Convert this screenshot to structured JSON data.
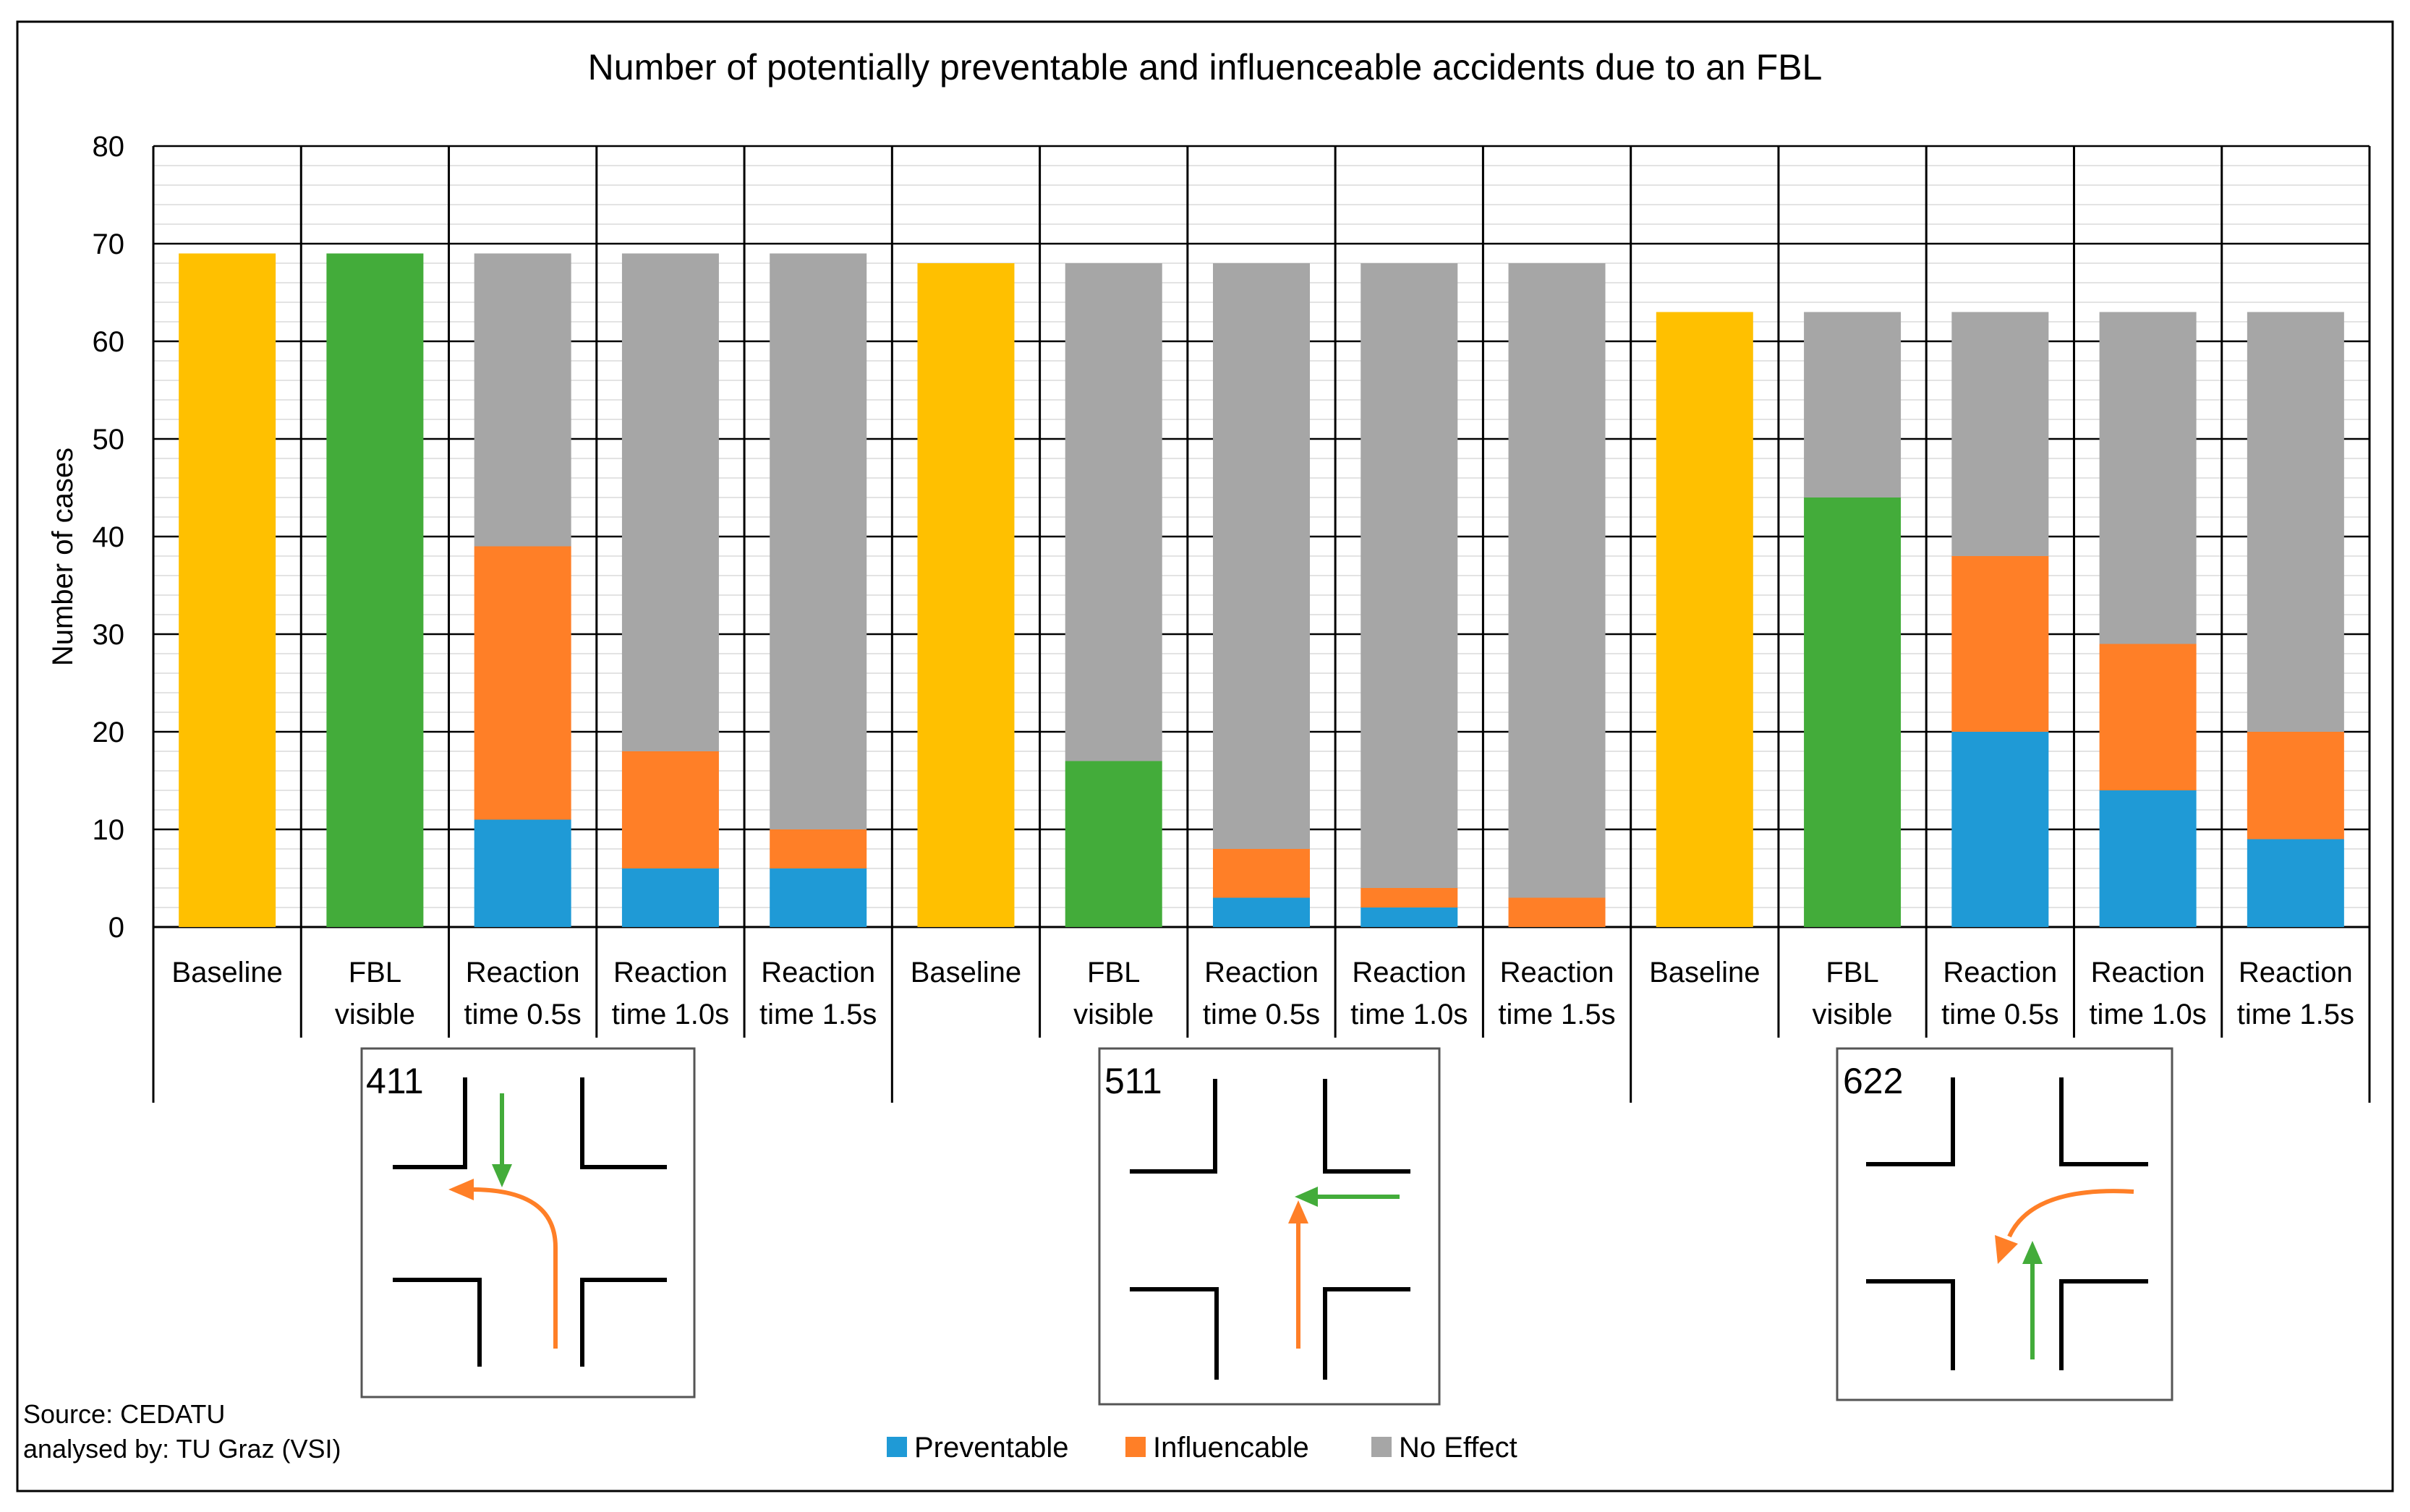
{
  "chart_data": {
    "type": "bar",
    "stacked": true,
    "title": "Number of potentially preventable and influenceable accidents due to an FBL",
    "xlabel": "",
    "ylabel": "Number of cases",
    "ylim": [
      0,
      80
    ],
    "yticks": [
      0,
      10,
      20,
      30,
      40,
      50,
      60,
      70,
      80
    ],
    "grid": true,
    "legend_position": "bottom-center",
    "categories": [
      [
        "Baseline",
        ""
      ],
      [
        "FBL",
        "visible"
      ],
      [
        "Reaction",
        "time 0.5s"
      ],
      [
        "Reaction",
        "time 1.0s"
      ],
      [
        "Reaction",
        "time 1.5s"
      ],
      [
        "Baseline",
        ""
      ],
      [
        "FBL",
        "visible"
      ],
      [
        "Reaction",
        "time 0.5s"
      ],
      [
        "Reaction",
        "time 1.0s"
      ],
      [
        "Reaction",
        "time 1.5s"
      ],
      [
        "Baseline",
        ""
      ],
      [
        "FBL",
        "visible"
      ],
      [
        "Reaction",
        "time 0.5s"
      ],
      [
        "Reaction",
        "time 1.0s"
      ],
      [
        "Reaction",
        "time 1.5s"
      ]
    ],
    "groups": [
      "411",
      "511",
      "622"
    ],
    "bars": [
      {
        "group": "411",
        "segments": [
          {
            "series": "Baseline",
            "value": 69
          }
        ]
      },
      {
        "group": "411",
        "segments": [
          {
            "series": "FBL visible",
            "value": 69
          }
        ]
      },
      {
        "group": "411",
        "segments": [
          {
            "series": "Preventable",
            "value": 11
          },
          {
            "series": "Influencable",
            "value": 28
          },
          {
            "series": "No Effect",
            "value": 30
          }
        ]
      },
      {
        "group": "411",
        "segments": [
          {
            "series": "Preventable",
            "value": 6
          },
          {
            "series": "Influencable",
            "value": 12
          },
          {
            "series": "No Effect",
            "value": 51
          }
        ]
      },
      {
        "group": "411",
        "segments": [
          {
            "series": "Preventable",
            "value": 6
          },
          {
            "series": "Influencable",
            "value": 4
          },
          {
            "series": "No Effect",
            "value": 59
          }
        ]
      },
      {
        "group": "511",
        "segments": [
          {
            "series": "Baseline",
            "value": 68
          }
        ]
      },
      {
        "group": "511",
        "segments": [
          {
            "series": "FBL visible",
            "value": 17
          },
          {
            "series": "No Effect",
            "value": 51
          }
        ]
      },
      {
        "group": "511",
        "segments": [
          {
            "series": "Preventable",
            "value": 3
          },
          {
            "series": "Influencable",
            "value": 5
          },
          {
            "series": "No Effect",
            "value": 60
          }
        ]
      },
      {
        "group": "511",
        "segments": [
          {
            "series": "Preventable",
            "value": 2
          },
          {
            "series": "Influencable",
            "value": 2
          },
          {
            "series": "No Effect",
            "value": 64
          }
        ]
      },
      {
        "group": "511",
        "segments": [
          {
            "series": "Preventable",
            "value": 0
          },
          {
            "series": "Influencable",
            "value": 3
          },
          {
            "series": "No Effect",
            "value": 65
          }
        ]
      },
      {
        "group": "622",
        "segments": [
          {
            "series": "Baseline",
            "value": 63
          }
        ]
      },
      {
        "group": "622",
        "segments": [
          {
            "series": "FBL visible",
            "value": 44
          },
          {
            "series": "No Effect",
            "value": 19
          }
        ]
      },
      {
        "group": "622",
        "segments": [
          {
            "series": "Preventable",
            "value": 20
          },
          {
            "series": "Influencable",
            "value": 18
          },
          {
            "series": "No Effect",
            "value": 25
          }
        ]
      },
      {
        "group": "622",
        "segments": [
          {
            "series": "Preventable",
            "value": 14
          },
          {
            "series": "Influencable",
            "value": 15
          },
          {
            "series": "No Effect",
            "value": 34
          }
        ]
      },
      {
        "group": "622",
        "segments": [
          {
            "series": "Preventable",
            "value": 9
          },
          {
            "series": "Influencable",
            "value": 11
          },
          {
            "series": "No Effect",
            "value": 43
          }
        ]
      }
    ],
    "series_colors": {
      "Baseline": "#FFC000",
      "FBL visible": "#43AC3A",
      "Preventable": "#1F9AD6",
      "Influencable": "#FF7F27",
      "No Effect": "#A6A6A6"
    },
    "legend": [
      {
        "label": "Preventable",
        "color": "#1F9AD6"
      },
      {
        "label": "Influencable",
        "color": "#FF7F27"
      },
      {
        "label": "No Effect",
        "color": "#A6A6A6"
      }
    ],
    "source_lines": [
      "Source: CEDATU",
      "analysed by: TU Graz (VSI)"
    ]
  },
  "diagram_colors": {
    "vehicle_a": "#43AC3A",
    "vehicle_b": "#FF7F27",
    "road": "#000000"
  }
}
